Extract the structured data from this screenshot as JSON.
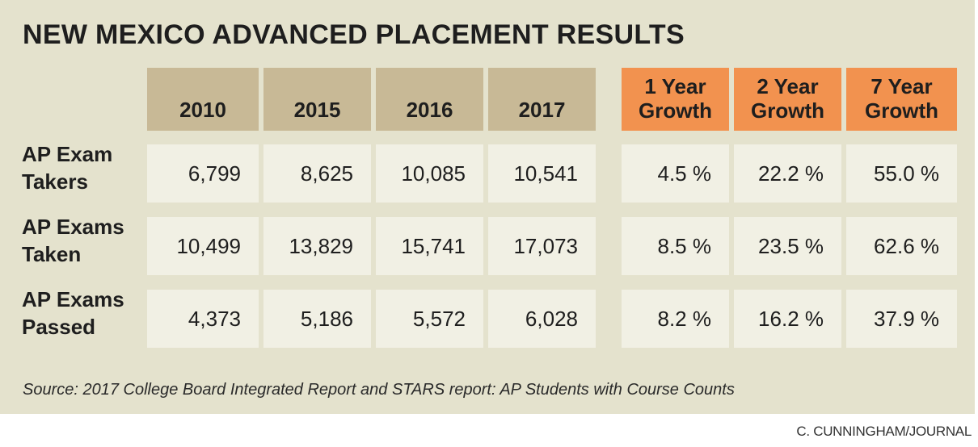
{
  "title": "NEW MEXICO ADVANCED PLACEMENT RESULTS",
  "source": "Source: 2017 College Board Integrated Report and STARS report: AP Students with Course Counts",
  "credit": "C. CUNNINGHAM/JOURNAL",
  "colors": {
    "panel_bg": "#e4e2cd",
    "year_header_bg": "#c8b996",
    "growth_header_bg": "#f2924f",
    "data_cell_bg": "#f1f0e4"
  },
  "chart_data": {
    "type": "table",
    "title": "NEW MEXICO ADVANCED PLACEMENT RESULTS",
    "year_columns": [
      "2010",
      "2015",
      "2016",
      "2017"
    ],
    "growth_columns": [
      [
        "1 Year",
        "Growth"
      ],
      [
        "2 Year",
        "Growth"
      ],
      [
        "7 Year",
        "Growth"
      ]
    ],
    "rows": [
      {
        "label": [
          "AP Exam",
          "Takers"
        ],
        "values": [
          6799,
          8625,
          10085,
          10541
        ],
        "values_text": [
          "6,799",
          "8,625",
          "10,085",
          "10,541"
        ],
        "growth": [
          4.5,
          22.2,
          55.0
        ],
        "growth_text": [
          "4.5 %",
          "22.2 %",
          "55.0 %"
        ]
      },
      {
        "label": [
          "AP Exams",
          "Taken"
        ],
        "values": [
          10499,
          13829,
          15741,
          17073
        ],
        "values_text": [
          "10,499",
          "13,829",
          "15,741",
          "17,073"
        ],
        "growth": [
          8.5,
          23.5,
          62.6
        ],
        "growth_text": [
          "8.5 %",
          "23.5 %",
          "62.6 %"
        ]
      },
      {
        "label": [
          "AP Exams",
          "Passed"
        ],
        "values": [
          4373,
          5186,
          5572,
          6028
        ],
        "values_text": [
          "4,373",
          "5,186",
          "5,572",
          "6,028"
        ],
        "growth": [
          8.2,
          16.2,
          37.9
        ],
        "growth_text": [
          "8.2 %",
          "16.2 %",
          "37.9 %"
        ]
      }
    ]
  }
}
